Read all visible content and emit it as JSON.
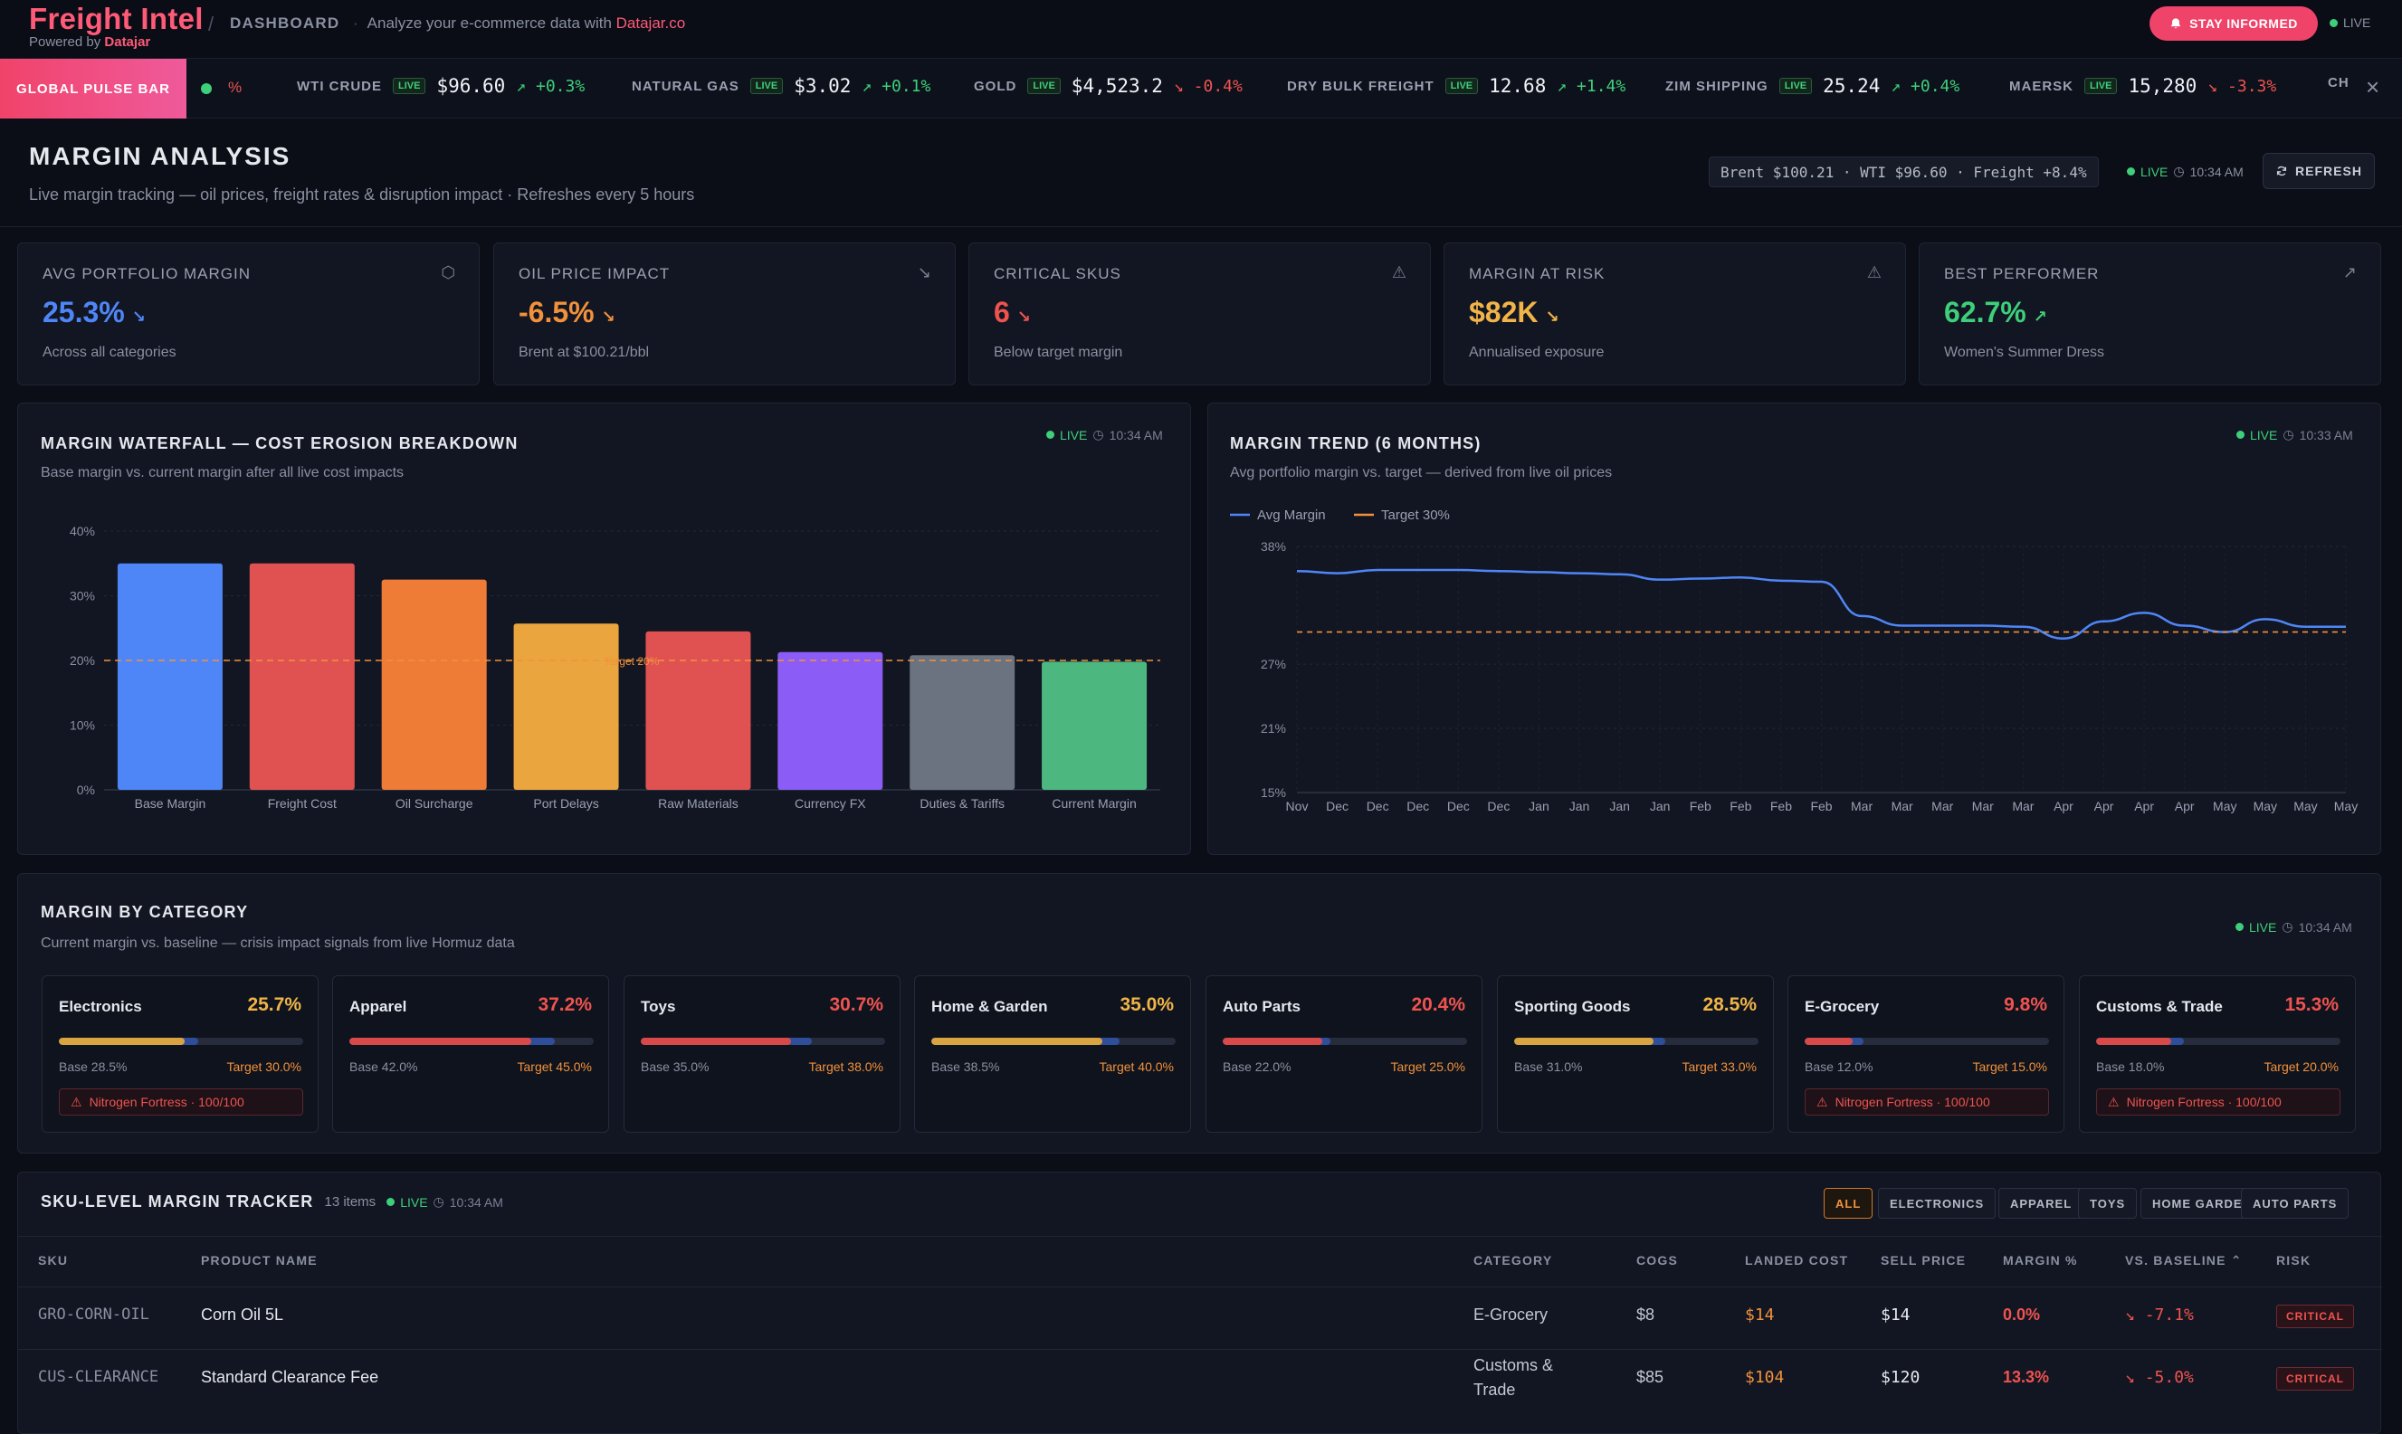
{
  "header": {
    "brand": "Freight Intel",
    "powered_prefix": "Powered by",
    "powered_brand": "Datajar",
    "crumb": "DASHBOARD",
    "tagline": "Analyze your e-commerce data with",
    "tagline_brand": "Datajar.co",
    "stay_informed": "STAY INFORMED",
    "live": "LIVE"
  },
  "ticker": {
    "pulse_label": "GLOBAL PULSE BAR",
    "pulse_pct": "%",
    "items": [
      {
        "name": "WTI CRUDE",
        "live": "LIVE",
        "price": "$96.60",
        "change": "+0.3%",
        "dir": "up"
      },
      {
        "name": "NATURAL GAS",
        "live": "LIVE",
        "price": "$3.02",
        "change": "+0.1%",
        "dir": "up"
      },
      {
        "name": "GOLD",
        "live": "LIVE",
        "price": "$4,523.2",
        "change": "-0.4%",
        "dir": "down"
      },
      {
        "name": "DRY BULK FREIGHT",
        "live": "LIVE",
        "price": "12.68",
        "change": "+1.4%",
        "dir": "up"
      },
      {
        "name": "ZIM SHIPPING",
        "live": "LIVE",
        "price": "25.24",
        "change": "+0.4%",
        "dir": "up"
      },
      {
        "name": "MAERSK",
        "live": "LIVE",
        "price": "15,280",
        "change": "-3.3%",
        "dir": "down"
      },
      {
        "name": "CH",
        "live": "",
        "price": "",
        "change": "",
        "dir": ""
      }
    ]
  },
  "page": {
    "title": "MARGIN ANALYSIS",
    "subtitle": "Live margin tracking — oil prices, freight rates & disruption impact · Refreshes every 5 hours",
    "status": "Brent $100.21 · WTI $96.60 · Freight +8.4%",
    "live": "LIVE",
    "time": "10:34 AM",
    "refresh": "REFRESH"
  },
  "kpis": [
    {
      "label": "AVG PORTFOLIO MARGIN",
      "icon": "box-icon",
      "value": "25.3%",
      "sub": "Across all categories",
      "color": "#4f86f7"
    },
    {
      "label": "OIL PRICE IMPACT",
      "icon": "trend-down-icon",
      "value": "-6.5%",
      "sub": "Brent at $100.21/bbl",
      "color": "#f2913b"
    },
    {
      "label": "CRITICAL SKUS",
      "icon": "warning-icon",
      "value": "6",
      "sub": "Below target margin",
      "color": "#ef5350"
    },
    {
      "label": "MARGIN AT RISK",
      "icon": "warning-icon",
      "value": "$82K",
      "sub": "Annualised exposure",
      "color": "#f0b448"
    },
    {
      "label": "BEST PERFORMER",
      "icon": "trend-up-icon",
      "value": "62.7%",
      "sub": "Women's Summer Dress",
      "color": "#3ecf7a"
    }
  ],
  "waterfall": {
    "title": "MARGIN WATERFALL — COST EROSION BREAKDOWN",
    "subtitle": "Base margin vs. current margin after all live cost impacts",
    "live": "LIVE",
    "time": "10:34 AM"
  },
  "trend": {
    "title": "MARGIN TREND (6 MONTHS)",
    "subtitle": "Avg portfolio margin vs. target — derived from live oil prices",
    "live": "LIVE",
    "time": "10:33 AM"
  },
  "chart_data": [
    {
      "type": "bar",
      "categories": [
        "Base Margin",
        "Freight Cost",
        "Oil Surcharge",
        "Port Delays",
        "Raw Materials",
        "Currency FX",
        "Duties & Tariffs",
        "Current Margin"
      ],
      "values": [
        35,
        35,
        32.5,
        25.7,
        24.5,
        21.3,
        20.8,
        19.8
      ],
      "colors": [
        "#4f86f7",
        "#e05252",
        "#ee7c36",
        "#eaa53e",
        "#e05252",
        "#8b5cf6",
        "#6b7280",
        "#4cb87f"
      ],
      "ylim": [
        0,
        40
      ],
      "yticks": [
        "0%",
        "10%",
        "20%",
        "30%",
        "40%"
      ],
      "target": 20,
      "target_label": "Target 20%",
      "grid": true
    },
    {
      "type": "line",
      "x": [
        "Nov",
        "Dec",
        "Dec",
        "Dec",
        "Dec",
        "Dec",
        "Jan",
        "Jan",
        "Jan",
        "Jan",
        "Feb",
        "Feb",
        "Feb",
        "Feb",
        "Mar",
        "Mar",
        "Mar",
        "Mar",
        "Mar",
        "Apr",
        "Apr",
        "Apr",
        "Apr",
        "May",
        "May",
        "May",
        "May"
      ],
      "series": [
        {
          "name": "Avg Margin",
          "color": "#4f86f7",
          "values": [
            35.7,
            35.5,
            35.8,
            35.8,
            35.8,
            35.7,
            35.6,
            35.5,
            35.4,
            34.9,
            35.0,
            35.1,
            34.8,
            34.7,
            31.5,
            30.6,
            30.6,
            30.6,
            30.5,
            29.4,
            31.0,
            31.8,
            30.6,
            30.0,
            31.2,
            30.5,
            30.5
          ]
        },
        {
          "name": "Target 30%",
          "color": "#f2913b",
          "dashed": true,
          "values": [
            30,
            30,
            30,
            30,
            30,
            30,
            30,
            30,
            30,
            30,
            30,
            30,
            30,
            30,
            30,
            30,
            30,
            30,
            30,
            30,
            30,
            30,
            30,
            30,
            30,
            30,
            30
          ]
        }
      ],
      "ylim": [
        15,
        38
      ],
      "yticks": [
        "15%",
        "21%",
        "27%",
        "38%"
      ],
      "grid": true,
      "legend": "top-left"
    }
  ],
  "category_section": {
    "title": "MARGIN BY CATEGORY",
    "subtitle": "Current margin vs. baseline — crisis impact signals from live Hormuz data",
    "live": "LIVE",
    "time": "10:34 AM",
    "items": [
      {
        "name": "Electronics",
        "pct": "25.7%",
        "current": 25.7,
        "base_val": 28.5,
        "base": "Base 28.5%",
        "target": "Target 30.0%",
        "color": "#f0b448",
        "bar": "#d9a342",
        "warn": "Nitrogen Fortress · 100/100"
      },
      {
        "name": "Apparel",
        "pct": "37.2%",
        "current": 37.2,
        "base_val": 42.0,
        "base": "Base 42.0%",
        "target": "Target 45.0%",
        "color": "#ef5350",
        "bar": "#d84a4a",
        "warn": ""
      },
      {
        "name": "Toys",
        "pct": "30.7%",
        "current": 30.7,
        "base_val": 35.0,
        "base": "Base 35.0%",
        "target": "Target 38.0%",
        "color": "#ef5350",
        "bar": "#d84a4a",
        "warn": ""
      },
      {
        "name": "Home & Garden",
        "pct": "35.0%",
        "current": 35.0,
        "base_val": 38.5,
        "base": "Base 38.5%",
        "target": "Target 40.0%",
        "color": "#f0b448",
        "bar": "#d9a342",
        "warn": ""
      },
      {
        "name": "Auto Parts",
        "pct": "20.4%",
        "current": 20.4,
        "base_val": 22.0,
        "base": "Base 22.0%",
        "target": "Target 25.0%",
        "color": "#ef5350",
        "bar": "#d84a4a",
        "warn": ""
      },
      {
        "name": "Sporting Goods",
        "pct": "28.5%",
        "current": 28.5,
        "base_val": 31.0,
        "base": "Base 31.0%",
        "target": "Target 33.0%",
        "color": "#f0b448",
        "bar": "#d9a342",
        "warn": ""
      },
      {
        "name": "E-Grocery",
        "pct": "9.8%",
        "current": 9.8,
        "base_val": 12.0,
        "base": "Base 12.0%",
        "target": "Target 15.0%",
        "color": "#ef5350",
        "bar": "#d84a4a",
        "warn": "Nitrogen Fortress · 100/100"
      },
      {
        "name": "Customs & Trade",
        "pct": "15.3%",
        "current": 15.3,
        "base_val": 18.0,
        "base": "Base 18.0%",
        "target": "Target 20.0%",
        "color": "#ef5350",
        "bar": "#d84a4a",
        "warn": "Nitrogen Fortress · 100/100"
      }
    ]
  },
  "sku": {
    "title": "SKU-LEVEL MARGIN TRACKER",
    "count": "13 items",
    "live": "LIVE",
    "time": "10:34 AM",
    "filters": [
      "ALL",
      "ELECTRONICS",
      "APPAREL",
      "TOYS",
      "HOME GARDEN",
      "AUTO PARTS"
    ],
    "columns": [
      "SKU",
      "PRODUCT NAME",
      "CATEGORY",
      "COGS",
      "LANDED COST",
      "SELL PRICE",
      "MARGIN %",
      "VS. BASELINE",
      "RISK"
    ],
    "rows": [
      {
        "sku": "GRO-CORN-OIL",
        "name": "Corn Oil 5L",
        "category": "E-Grocery",
        "category2": "",
        "cogs": "$8",
        "landed": "$14",
        "sell": "$14",
        "margin": "0.0%",
        "vs": "-7.1%",
        "risk": "CRITICAL"
      },
      {
        "sku": "CUS-CLEARANCE",
        "name": "Standard Clearance Fee",
        "category": "Customs &",
        "category2": "Trade",
        "cogs": "$85",
        "landed": "$104",
        "sell": "$120",
        "margin": "13.3%",
        "vs": "-5.0%",
        "risk": "CRITICAL"
      }
    ]
  }
}
